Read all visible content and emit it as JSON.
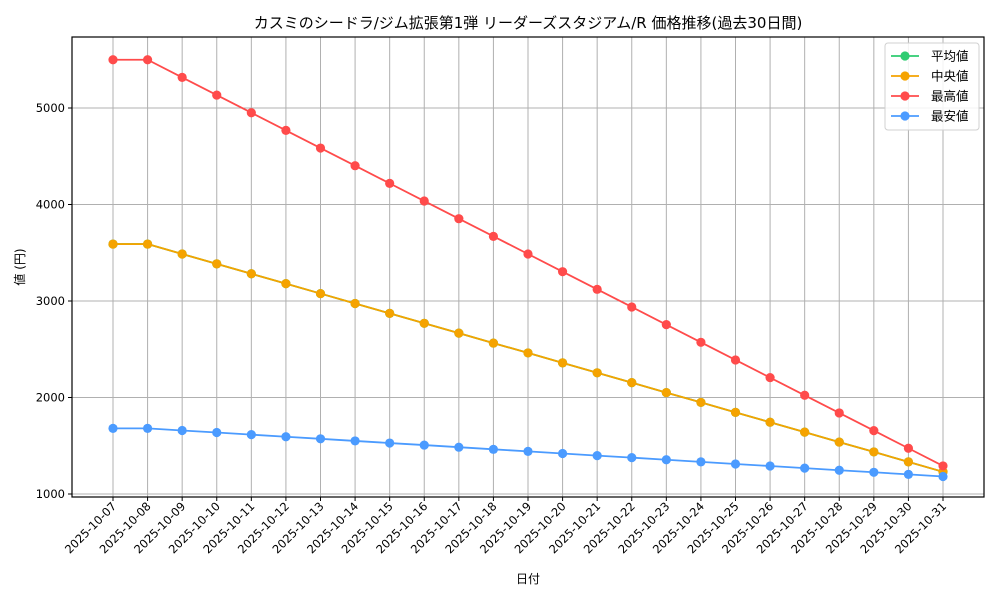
{
  "chart_data": {
    "type": "line",
    "title": "カスミのシードラ/ジム拡張第1弾 リーダーズスタジアム/R 価格推移(過去30日間)",
    "xlabel": "日付",
    "ylabel": "値 (円)",
    "ylim": [
      960,
      5720
    ],
    "yticks": [
      1000,
      2000,
      3000,
      4000,
      5000
    ],
    "grid": true,
    "legend_position": "upper right",
    "categories": [
      "2025-10-07",
      "2025-10-08",
      "2025-10-09",
      "2025-10-10",
      "2025-10-11",
      "2025-10-12",
      "2025-10-13",
      "2025-10-14",
      "2025-10-15",
      "2025-10-16",
      "2025-10-17",
      "2025-10-18",
      "2025-10-19",
      "2025-10-20",
      "2025-10-21",
      "2025-10-22",
      "2025-10-23",
      "2025-10-24",
      "2025-10-25",
      "2025-10-26",
      "2025-10-27",
      "2025-10-28",
      "2025-10-29",
      "2025-10-30",
      "2025-10-31"
    ],
    "series": [
      {
        "name": "平均値",
        "color": "#2ecc71",
        "values": [
          3590,
          3590,
          3487,
          3385,
          3282,
          3180,
          3077,
          2974,
          2872,
          2769,
          2667,
          2564,
          2462,
          2359,
          2256,
          2154,
          2051,
          1949,
          1846,
          1744,
          1641,
          1538,
          1436,
          1333,
          1230
        ]
      },
      {
        "name": "中央値",
        "color": "#f5a300",
        "values": [
          3590,
          3590,
          3487,
          3385,
          3282,
          3180,
          3077,
          2974,
          2872,
          2769,
          2667,
          2564,
          2462,
          2359,
          2256,
          2154,
          2051,
          1949,
          1846,
          1744,
          1641,
          1538,
          1436,
          1333,
          1230
        ]
      },
      {
        "name": "最高値",
        "color": "#ff4b4b",
        "values": [
          5500,
          5500,
          5317,
          5134,
          4951,
          4768,
          4585,
          4402,
          4219,
          4036,
          3853,
          3670,
          3487,
          3304,
          3121,
          2938,
          2755,
          2572,
          2389,
          2206,
          2023,
          1840,
          1657,
          1474,
          1291
        ]
      },
      {
        "name": "最安値",
        "color": "#4b9bff",
        "values": [
          1680,
          1680,
          1658,
          1637,
          1615,
          1593,
          1572,
          1550,
          1528,
          1507,
          1485,
          1463,
          1442,
          1420,
          1398,
          1377,
          1355,
          1333,
          1311,
          1290,
          1268,
          1246,
          1225,
          1203,
          1181
        ]
      }
    ]
  }
}
